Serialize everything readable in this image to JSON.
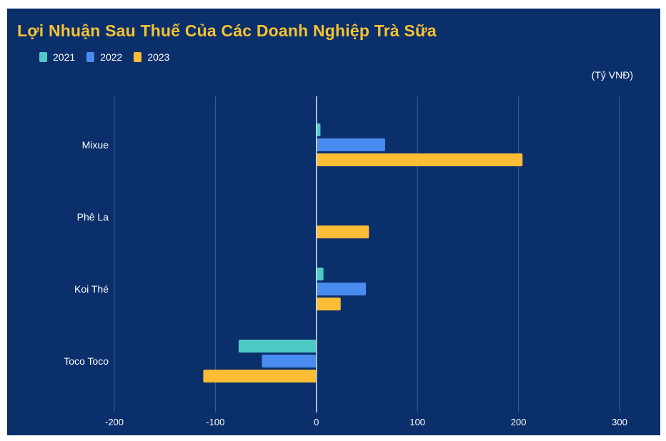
{
  "chart_data": {
    "type": "bar",
    "orientation": "horizontal",
    "title": "Lợi Nhuận Sau Thuế Của Các Doanh Nghiệp Trà Sữa",
    "unit_label": "(Tỷ VNĐ)",
    "categories": [
      "Mixue",
      "Phê La",
      "Koi Thé",
      "Toco Toco"
    ],
    "series": [
      {
        "name": "2021",
        "color": "#4fc9c4",
        "values": [
          4,
          0,
          7,
          -77
        ]
      },
      {
        "name": "2022",
        "color": "#4a8bef",
        "values": [
          68,
          0,
          49,
          -54
        ]
      },
      {
        "name": "2023",
        "color": "#fbbd36",
        "values": [
          204,
          52,
          24,
          -112
        ]
      }
    ],
    "xlim": [
      -200,
      300
    ],
    "xticks": [
      "-200",
      "-100",
      "0",
      "100",
      "200",
      "300"
    ],
    "grid": true,
    "legend_position": "top-left"
  }
}
